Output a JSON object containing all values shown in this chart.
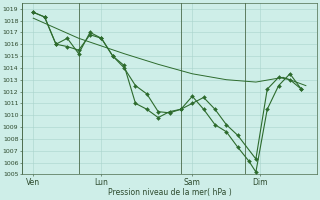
{
  "xlabel": "Pression niveau de la mer( hPa )",
  "background_color": "#ceeee8",
  "grid_color": "#aad4cc",
  "line_color": "#2d6b2d",
  "vline_color": "#4a6a4a",
  "ylim": [
    1005,
    1019.5
  ],
  "ytick_min": 1005,
  "ytick_max": 1019,
  "day_labels": [
    "Ven",
    "Lun",
    "Sam",
    "Dim"
  ],
  "day_positions": [
    0.5,
    3.5,
    7.5,
    10.5
  ],
  "vline_positions": [
    0,
    2.5,
    7.0,
    9.8
  ],
  "xlim": [
    0,
    13
  ],
  "s1x": [
    0.5,
    1.0,
    1.5,
    2.0,
    2.5,
    3.0,
    3.5,
    4.0,
    4.5,
    5.0,
    5.5,
    6.0,
    6.5,
    7.0,
    7.5,
    8.0,
    8.5,
    9.0,
    9.5,
    10.0,
    10.3,
    10.8,
    11.3,
    11.8,
    12.3
  ],
  "s1y": [
    1018.7,
    1018.3,
    1016.0,
    1016.5,
    1015.2,
    1017.0,
    1016.5,
    1015.0,
    1014.2,
    1011.0,
    1010.5,
    1009.8,
    1010.3,
    1010.5,
    1011.6,
    1010.5,
    1009.2,
    1008.6,
    1007.3,
    1006.1,
    1005.2,
    1010.5,
    1012.5,
    1013.5,
    1012.2
  ],
  "s2x": [
    0.5,
    1.0,
    1.5,
    2.0,
    2.5,
    3.0,
    3.5,
    4.0,
    4.5,
    5.0,
    5.5,
    6.0,
    6.5,
    7.0,
    7.5,
    8.0,
    8.5,
    9.0,
    9.5,
    10.3,
    10.8,
    11.3,
    11.8,
    12.3
  ],
  "s2y": [
    1018.7,
    1018.3,
    1016.0,
    1015.8,
    1015.5,
    1016.8,
    1016.5,
    1015.0,
    1014.0,
    1012.5,
    1011.8,
    1010.3,
    1010.2,
    1010.5,
    1011.0,
    1011.5,
    1010.5,
    1009.2,
    1008.3,
    1006.3,
    1012.2,
    1013.2,
    1013.0,
    1012.2
  ],
  "s3x": [
    0.5,
    2.5,
    4.5,
    6.0,
    7.5,
    9.0,
    10.3,
    11.5,
    12.5
  ],
  "s3y": [
    1018.2,
    1016.5,
    1015.2,
    1014.3,
    1013.5,
    1013.0,
    1012.8,
    1013.2,
    1012.5
  ]
}
